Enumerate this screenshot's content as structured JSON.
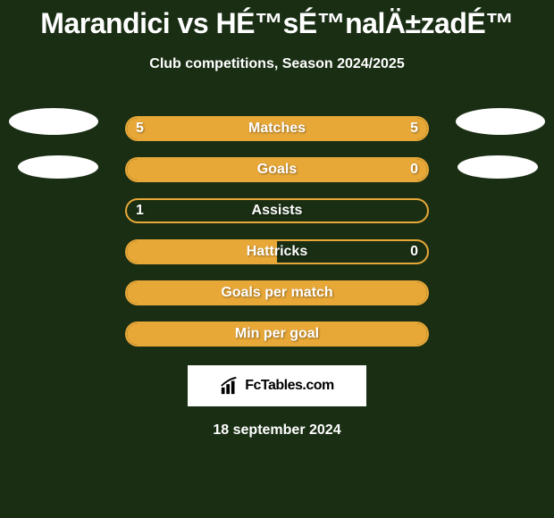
{
  "title": "Marandici vs HÉ™sÉ™nalÄ±zadÉ™",
  "subtitle": "Club competitions, Season 2024/2025",
  "date": "18 september 2024",
  "logo_text": "FcTables.com",
  "colors": {
    "background": "#1a2e14",
    "bar_border": "#e8a838",
    "bar_fill": "#e8a838",
    "text": "#ffffff",
    "oval": "#ffffff",
    "logo_bg": "#ffffff",
    "logo_text": "#000000"
  },
  "stats": [
    {
      "label": "Matches",
      "left_value": "5",
      "right_value": "5",
      "left_pct": 50,
      "right_pct": 50,
      "show_left": true,
      "show_right": true
    },
    {
      "label": "Goals",
      "left_value": "",
      "right_value": "0",
      "left_pct": 100,
      "right_pct": 0,
      "show_left": false,
      "show_right": true
    },
    {
      "label": "Assists",
      "left_value": "1",
      "right_value": "",
      "left_pct": 0,
      "right_pct": 0,
      "show_left": true,
      "show_right": false
    },
    {
      "label": "Hattricks",
      "left_value": "",
      "right_value": "0",
      "left_pct": 50,
      "right_pct": 0,
      "show_left": false,
      "show_right": true
    },
    {
      "label": "Goals per match",
      "left_value": "",
      "right_value": "",
      "left_pct": 100,
      "right_pct": 0,
      "show_left": false,
      "show_right": false
    },
    {
      "label": "Min per goal",
      "left_value": "",
      "right_value": "",
      "left_pct": 100,
      "right_pct": 0,
      "show_left": false,
      "show_right": false
    }
  ]
}
